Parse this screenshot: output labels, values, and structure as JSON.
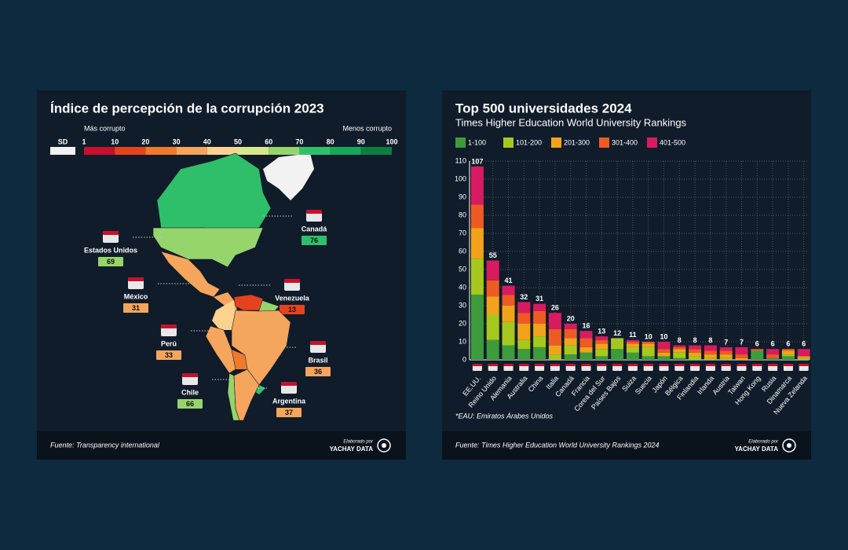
{
  "chart_data": [
    {
      "type": "map",
      "title": "Índice de percepción de la corrupción 2023",
      "legend": {
        "left_label": "Más corrupto",
        "right_label": "Menos corrupto",
        "no_data_label": "SD",
        "no_data_color": "#f2f2f2",
        "ticks": [
          1,
          10,
          20,
          30,
          40,
          50,
          60,
          70,
          80,
          90,
          100
        ],
        "colors": [
          "#c8102e",
          "#e5421e",
          "#f0792c",
          "#f5a55c",
          "#fbd28e",
          "#d8e68c",
          "#96d46c",
          "#2fbf6a",
          "#15a75a",
          "#0e7d40"
        ]
      },
      "countries": [
        {
          "name": "Canadá",
          "value": 76
        },
        {
          "name": "Estados Unidos",
          "value": 69
        },
        {
          "name": "México",
          "value": 31
        },
        {
          "name": "Venezuela",
          "value": 13
        },
        {
          "name": "Perú",
          "value": 33
        },
        {
          "name": "Brasil",
          "value": 36
        },
        {
          "name": "Chile",
          "value": 66
        },
        {
          "name": "Argentina",
          "value": 37
        }
      ],
      "source": "Fuente: Transparency international",
      "credit": {
        "by": "Elaborado por",
        "brand": "YACHAY DATA"
      }
    },
    {
      "type": "bar",
      "stacked": true,
      "title": "Top 500 universidades 2024",
      "subtitle": "Times Higher Education World University Rankings",
      "categories": [
        "EE.UU.",
        "Reino Unido",
        "Alemania",
        "Australia",
        "China",
        "Italia",
        "Canadá",
        "Francia",
        "Corea del Sur",
        "Países Bajos",
        "Suiza",
        "Suecia",
        "Japón",
        "Bélgica",
        "Finlandia",
        "Irlanda",
        "Austria",
        "Taiwan",
        "Hong Kong",
        "Rusia",
        "Dinamarca",
        "Nueva Zelanda"
      ],
      "series": [
        {
          "name": "1-100",
          "color": "#3e9b3c",
          "values": [
            36,
            11,
            8,
            6,
            7,
            0,
            3,
            4,
            2,
            6,
            4,
            2,
            2,
            1,
            0,
            0,
            0,
            0,
            5,
            1,
            2,
            0
          ]
        },
        {
          "name": "101-200",
          "color": "#a6c81e",
          "values": [
            20,
            14,
            13,
            5,
            6,
            3,
            5,
            0,
            4,
            6,
            3,
            5,
            0,
            3,
            2,
            1,
            1,
            0,
            0,
            0,
            1,
            1
          ]
        },
        {
          "name": "201-300",
          "color": "#f2a31b",
          "values": [
            17,
            10,
            9,
            9,
            7,
            5,
            4,
            3,
            3,
            0,
            2,
            2,
            2,
            2,
            2,
            2,
            2,
            1,
            0,
            0,
            2,
            1
          ]
        },
        {
          "name": "301-400",
          "color": "#ee5a24",
          "values": [
            13,
            9,
            6,
            6,
            7,
            9,
            5,
            5,
            2,
            0,
            1,
            1,
            2,
            1,
            2,
            2,
            2,
            2,
            1,
            2,
            1,
            0
          ]
        },
        {
          "name": "401-500",
          "color": "#d81b60",
          "values": [
            21,
            11,
            5,
            6,
            4,
            9,
            3,
            4,
            2,
            0,
            1,
            0,
            4,
            1,
            2,
            3,
            2,
            4,
            0,
            3,
            0,
            4
          ]
        }
      ],
      "totals": [
        107,
        55,
        41,
        32,
        31,
        26,
        20,
        16,
        13,
        12,
        11,
        10,
        10,
        8,
        8,
        8,
        7,
        7,
        6,
        6,
        6,
        6
      ],
      "ylim": [
        0,
        110
      ],
      "yticks": [
        0,
        10,
        20,
        30,
        40,
        50,
        60,
        70,
        80,
        90,
        100,
        110
      ],
      "grid": true,
      "note": "*EAU: Emiratos Árabes Unidos",
      "source": "Fuente: Times Higher Education World University Rankings 2024",
      "credit": {
        "by": "Elaborado por",
        "brand": "YACHAY DATA"
      }
    }
  ]
}
